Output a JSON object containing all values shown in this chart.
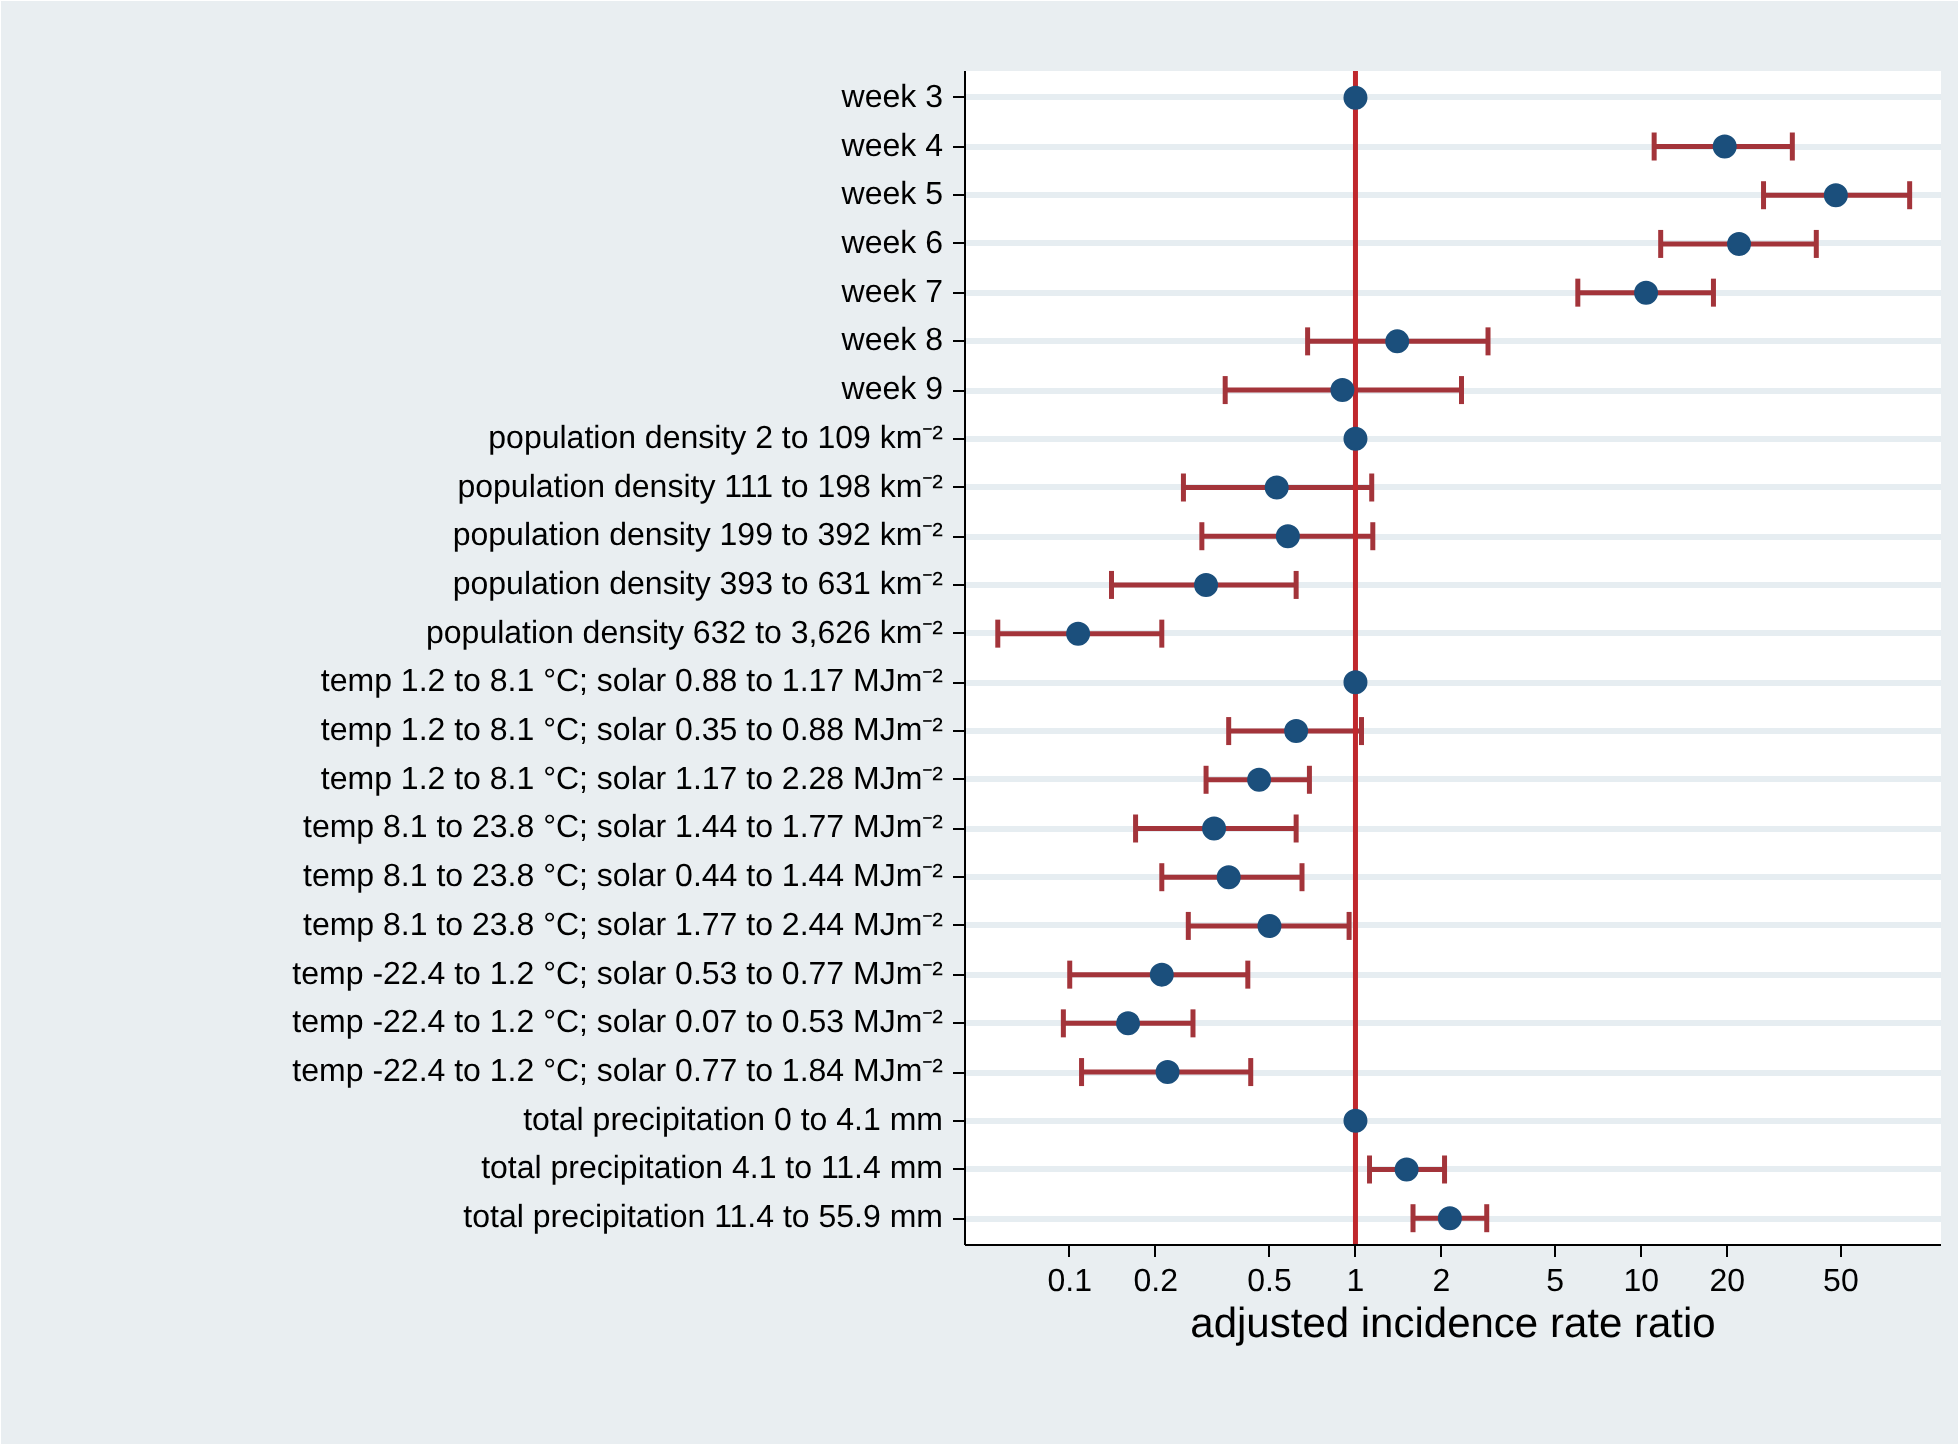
{
  "chart_data": {
    "type": "scatter",
    "orientation": "horizontal",
    "xlabel": "adjusted incidence rate ratio",
    "categories": [
      "week 3",
      "week 4",
      "week 5",
      "week 6",
      "week 7",
      "week 8",
      "week 9",
      "population density 2 to 109 km⁻²",
      "population density 111 to 198 km⁻²",
      "population density 199 to 392 km⁻²",
      "population density 393 to 631 km⁻²",
      "population density 632 to 3,626 km⁻²",
      "temp 1.2 to 8.1 °C; solar 0.88 to 1.17 MJm⁻²",
      "temp 1.2 to 8.1 °C; solar 0.35 to 0.88 MJm⁻²",
      "temp 1.2 to 8.1 °C; solar 1.17 to 2.28 MJm⁻²",
      "temp 8.1 to 23.8 °C; solar 1.44 to 1.77 MJm⁻²",
      "temp 8.1 to 23.8 °C; solar 0.44 to 1.44 MJm⁻²",
      "temp 8.1 to 23.8 °C; solar 1.77 to 2.44 MJm⁻²",
      "temp -22.4 to 1.2 °C; solar 0.53 to 0.77 MJm⁻²",
      "temp -22.4 to 1.2 °C; solar 0.07 to 0.53 MJm⁻²",
      "temp -22.4 to 1.2 °C; solar 0.77 to 1.84 MJm⁻²",
      "total precipitation 0 to 4.1 mm",
      "total precipitation 4.1 to 11.4 mm",
      "total precipitation 11.4 to 55.9 mm"
    ],
    "values": [
      1,
      19.6,
      48,
      22,
      10.4,
      1.4,
      0.9,
      1,
      0.53,
      0.58,
      0.3,
      0.107,
      1,
      0.62,
      0.46,
      0.32,
      0.36,
      0.5,
      0.21,
      0.16,
      0.22,
      1,
      1.51,
      2.14
    ],
    "errors": [
      null,
      [
        11.1,
        33.8
      ],
      [
        26.8,
        87
      ],
      [
        11.7,
        41
      ],
      [
        6.0,
        17.9
      ],
      [
        0.68,
        2.91
      ],
      [
        0.35,
        2.35
      ],
      null,
      [
        0.25,
        1.14
      ],
      [
        0.29,
        1.15
      ],
      [
        0.14,
        0.62
      ],
      [
        0.056,
        0.21
      ],
      null,
      [
        0.36,
        1.05
      ],
      [
        0.3,
        0.69
      ],
      [
        0.17,
        0.62
      ],
      [
        0.21,
        0.65
      ],
      [
        0.26,
        0.95
      ],
      [
        0.1,
        0.42
      ],
      [
        0.095,
        0.27
      ],
      [
        0.11,
        0.43
      ],
      null,
      [
        1.12,
        2.05
      ],
      [
        1.59,
        2.88
      ]
    ],
    "color": "#1b4f7c",
    "log": "x",
    "xlim": [
      0.043,
      112
    ],
    "xticks": [
      0.1,
      0.2,
      0.5,
      1,
      2,
      5,
      10,
      20,
      50
    ],
    "grid": "y",
    "marker": "circle",
    "ref_lines": [
      {
        "axis": "x",
        "value": 1,
        "label": null,
        "color": "#c0282d"
      }
    ]
  }
}
